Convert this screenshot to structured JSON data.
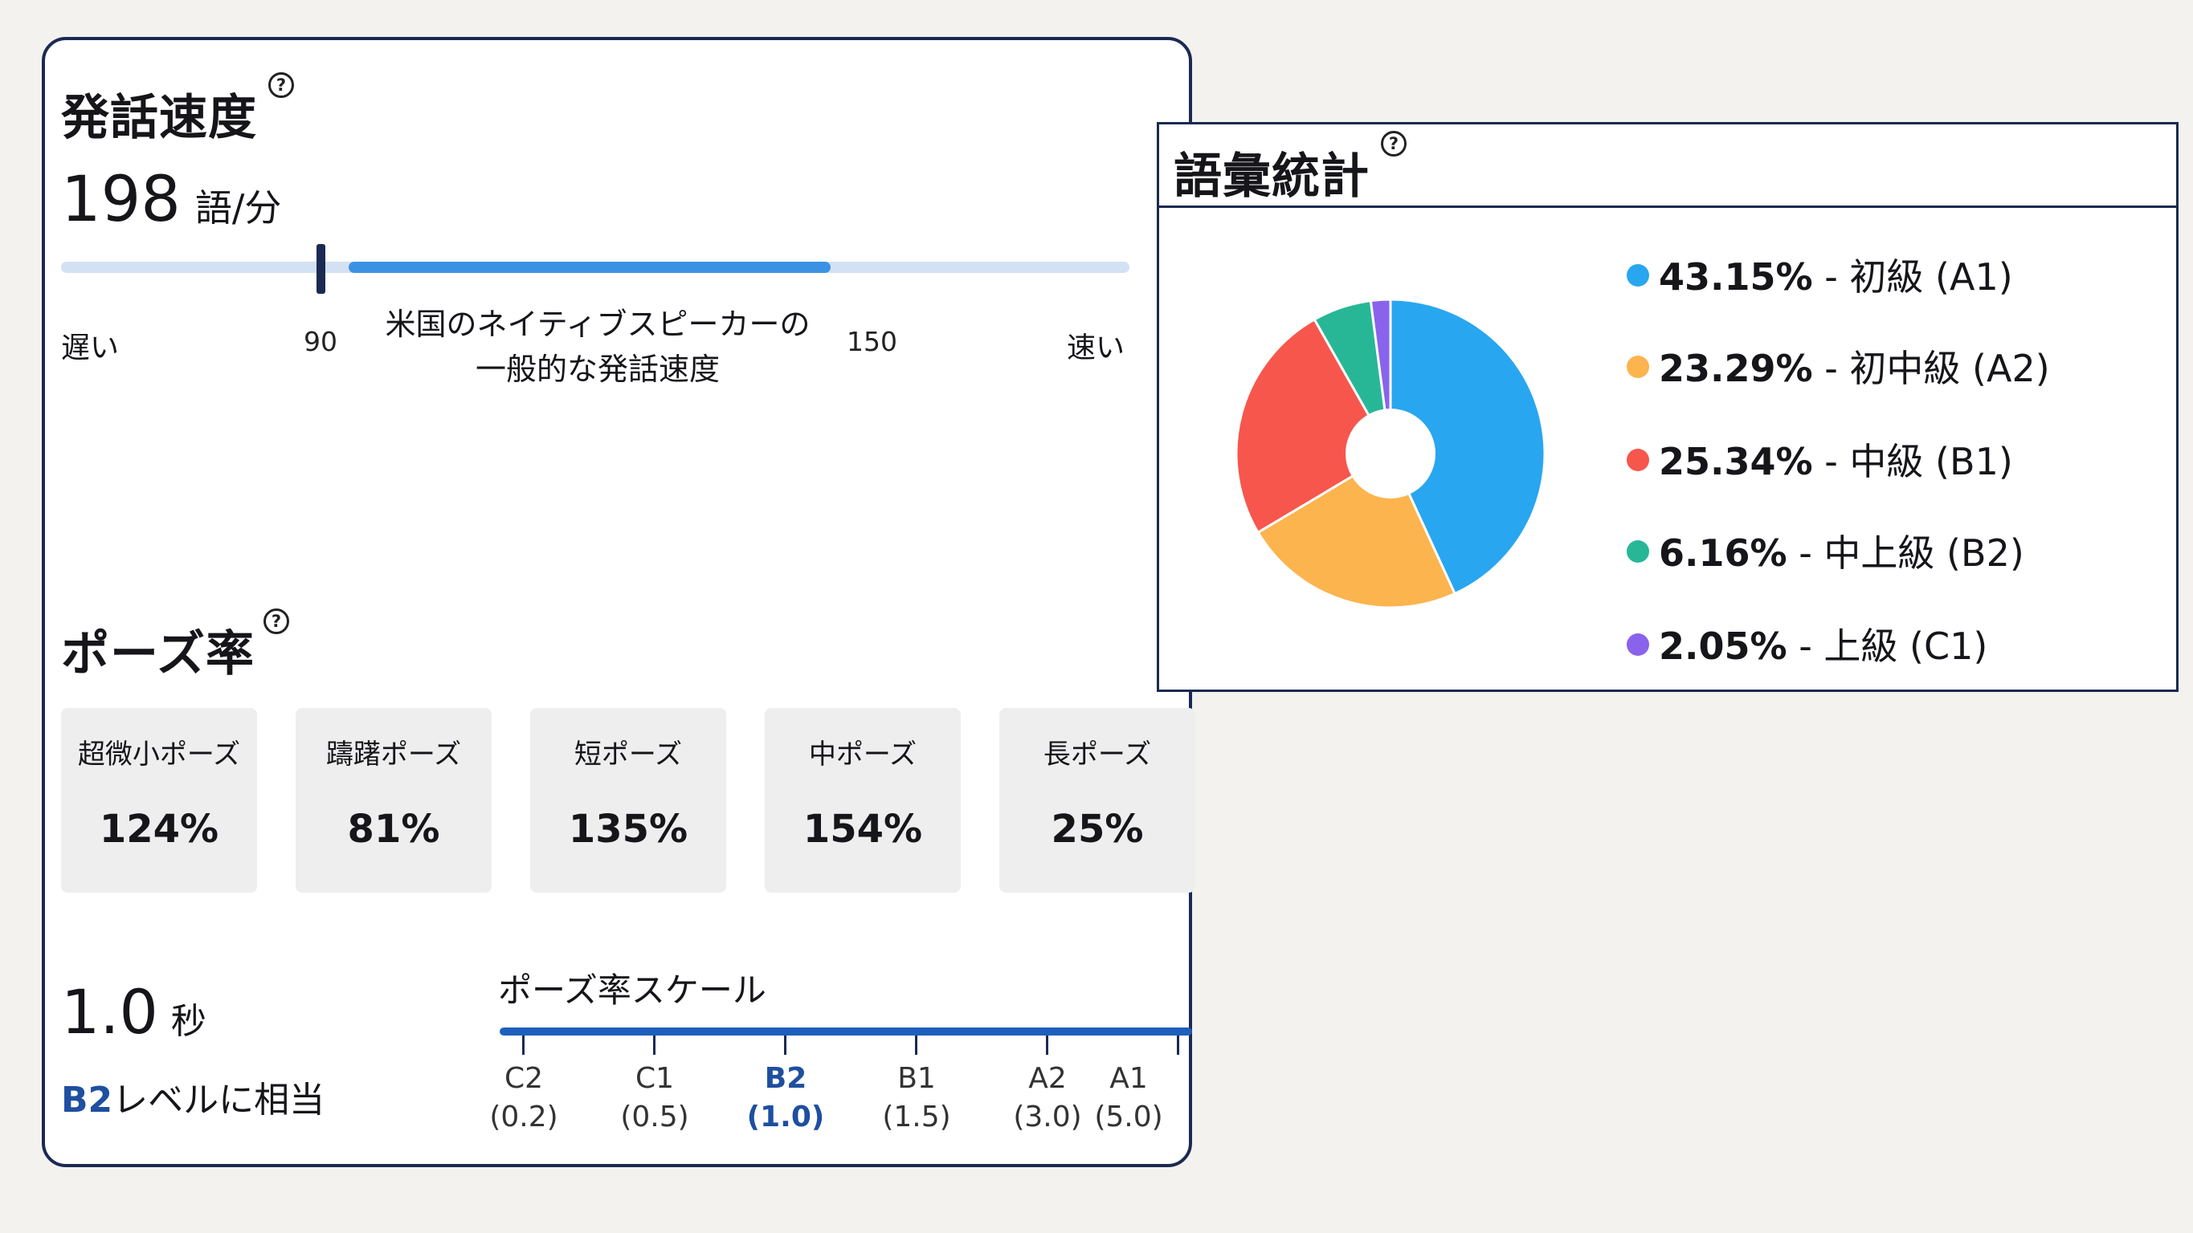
{
  "speech_rate": {
    "title": "発話速度",
    "value": "198",
    "unit": "語/分",
    "slow_label": "遅い",
    "fast_label": "速い",
    "min_native": "90",
    "max_native": "150",
    "native_label_line1": "米国のネイティブスピーカーの",
    "native_label_line2": "一般的な発話速度"
  },
  "pause_rate": {
    "title": "ポーズ率",
    "cards": [
      {
        "label": "超微小ポーズ",
        "value": "124%"
      },
      {
        "label": "躊躇ポーズ",
        "value": "81%"
      },
      {
        "label": "短ポーズ",
        "value": "135%"
      },
      {
        "label": "中ポーズ",
        "value": "154%"
      },
      {
        "label": "長ポーズ",
        "value": "25%"
      }
    ],
    "seconds": "1.0",
    "seconds_unit": "秒",
    "level_code": "B2",
    "level_text": "レベルに相当",
    "scale_title": "ポーズ率スケール",
    "scale": [
      {
        "level": "C2",
        "value": "(0.2)",
        "active": false
      },
      {
        "level": "C1",
        "value": "(0.5)",
        "active": false
      },
      {
        "level": "B2",
        "value": "(1.0)",
        "active": true
      },
      {
        "level": "B1",
        "value": "(1.5)",
        "active": false
      },
      {
        "level": "A2",
        "value": "(3.0)",
        "active": false
      },
      {
        "level": "A1",
        "value": "(5.0)",
        "active": false
      }
    ]
  },
  "help_icon": "question-circle-icon",
  "help_glyph": "?",
  "vocab": {
    "title": "語彙統計",
    "legend": [
      {
        "pct": "43.15%",
        "label": " - 初級 (A1)"
      },
      {
        "pct": "23.29%",
        "label": " - 初中級 (A2)"
      },
      {
        "pct": "25.34%",
        "label": " - 中級 (B1)"
      },
      {
        "pct": "6.16%",
        "label": " - 中上級 (B2)"
      },
      {
        "pct": "2.05%",
        "label": " - 上級 (C1)"
      }
    ]
  },
  "chart_data": {
    "type": "pie",
    "donut": true,
    "categories": [
      "初級 (A1)",
      "初中級 (A2)",
      "中級 (B1)",
      "中上級 (B2)",
      "上級 (C1)"
    ],
    "values": [
      43.15,
      23.29,
      25.34,
      6.16,
      2.05
    ],
    "colors": [
      "#29a6f0",
      "#fcb44e",
      "#f7564d",
      "#27b797",
      "#8a63ec"
    ],
    "legend": "right"
  },
  "colors": {
    "border": "#1b2a52",
    "accent_blue": "#1e4fa0",
    "track_fill": "#3b92e3",
    "track_bg": "#d3e1f4"
  }
}
